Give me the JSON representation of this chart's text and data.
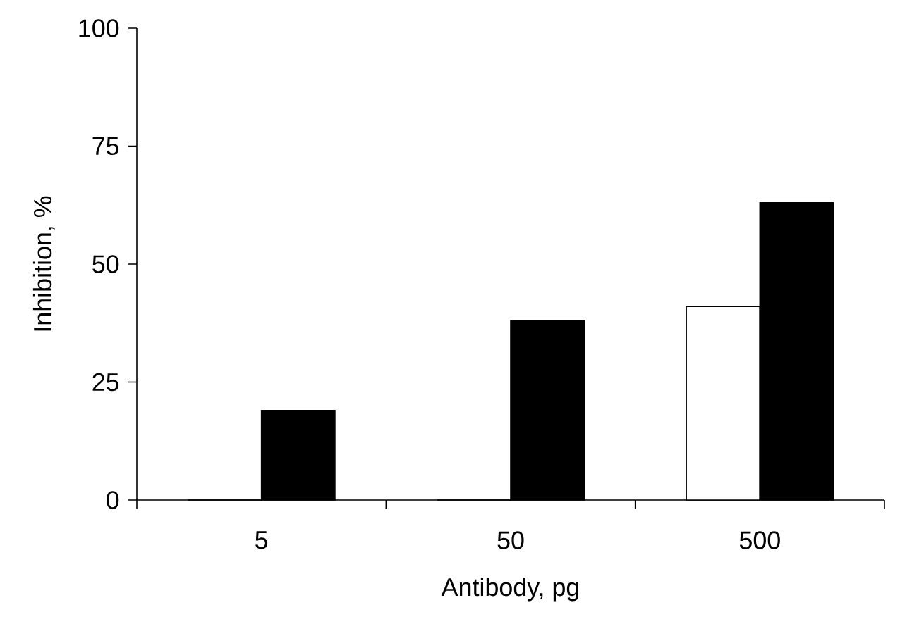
{
  "chart_data": {
    "type": "bar",
    "xlabel": "Antibody, pg",
    "ylabel": "Inhibition, %",
    "categories": [
      "5",
      "50",
      "500"
    ],
    "series": [
      {
        "color": "#ffffff",
        "values": [
          0,
          0,
          41
        ]
      },
      {
        "color": "#000000",
        "values": [
          19,
          38,
          63
        ]
      }
    ],
    "ylim": [
      0,
      100
    ],
    "yticks": [
      0,
      25,
      50,
      75,
      100
    ]
  }
}
